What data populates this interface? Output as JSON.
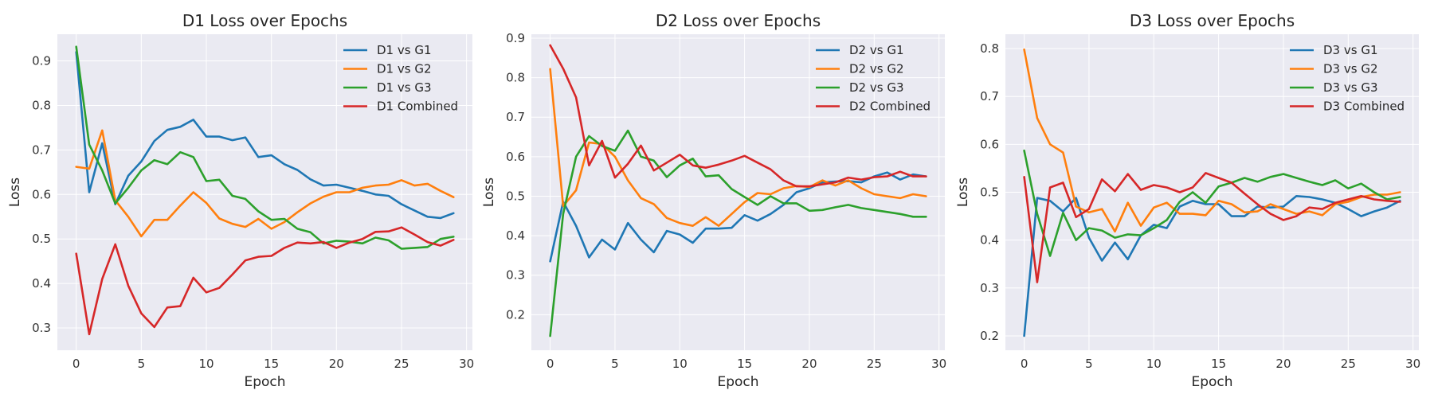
{
  "chart_data": [
    {
      "type": "line",
      "title": "D1 Loss over Epochs",
      "xlabel": "Epoch",
      "ylabel": "Loss",
      "xlim": [
        -1.45,
        30.45
      ],
      "ylim": [
        0.25,
        0.96
      ],
      "xticks": [
        0,
        5,
        10,
        15,
        20,
        25,
        30
      ],
      "yticks": [
        0.3,
        0.4,
        0.5,
        0.6,
        0.7,
        0.8,
        0.9
      ],
      "grid": true,
      "legend": "top-right",
      "x": [
        0,
        1,
        2,
        3,
        4,
        5,
        6,
        7,
        8,
        9,
        10,
        11,
        12,
        13,
        14,
        15,
        16,
        17,
        18,
        19,
        20,
        21,
        22,
        23,
        24,
        25,
        26,
        27,
        28,
        29
      ],
      "series": [
        {
          "name": "D1 vs G1",
          "color": "#1f77b4",
          "values": [
            0.92,
            0.605,
            0.715,
            0.578,
            0.642,
            0.674,
            0.72,
            0.745,
            0.752,
            0.768,
            0.73,
            0.73,
            0.722,
            0.728,
            0.684,
            0.688,
            0.668,
            0.655,
            0.634,
            0.62,
            0.622,
            0.615,
            0.608,
            0.6,
            0.597,
            0.578,
            0.564,
            0.55,
            0.547,
            0.558
          ]
        },
        {
          "name": "D1 vs G2",
          "color": "#ff7f0e",
          "values": [
            0.662,
            0.658,
            0.744,
            0.587,
            0.55,
            0.506,
            0.543,
            0.543,
            0.575,
            0.605,
            0.581,
            0.546,
            0.534,
            0.527,
            0.545,
            0.523,
            0.538,
            0.56,
            0.58,
            0.595,
            0.605,
            0.605,
            0.615,
            0.62,
            0.622,
            0.632,
            0.62,
            0.624,
            0.608,
            0.594
          ]
        },
        {
          "name": "D1 vs G3",
          "color": "#2ca02c",
          "values": [
            0.932,
            0.712,
            0.654,
            0.58,
            0.615,
            0.654,
            0.677,
            0.668,
            0.695,
            0.684,
            0.63,
            0.633,
            0.597,
            0.59,
            0.562,
            0.543,
            0.545,
            0.523,
            0.515,
            0.49,
            0.496,
            0.494,
            0.49,
            0.503,
            0.497,
            0.478,
            0.48,
            0.482,
            0.5,
            0.505
          ]
        },
        {
          "name": "D1 Combined",
          "color": "#d62728",
          "values": [
            0.467,
            0.286,
            0.41,
            0.488,
            0.395,
            0.333,
            0.302,
            0.346,
            0.349,
            0.413,
            0.38,
            0.39,
            0.42,
            0.452,
            0.46,
            0.462,
            0.48,
            0.492,
            0.49,
            0.493,
            0.48,
            0.492,
            0.5,
            0.516,
            0.517,
            0.526,
            0.51,
            0.493,
            0.485,
            0.498
          ]
        }
      ]
    },
    {
      "type": "line",
      "title": "D2 Loss over Epochs",
      "xlabel": "Epoch",
      "ylabel": "Loss",
      "xlim": [
        -1.45,
        30.45
      ],
      "ylim": [
        0.11,
        0.91
      ],
      "xticks": [
        0,
        5,
        10,
        15,
        20,
        25,
        30
      ],
      "yticks": [
        0.2,
        0.3,
        0.4,
        0.5,
        0.6,
        0.7,
        0.8,
        0.9
      ],
      "grid": true,
      "legend": "top-right",
      "x": [
        0,
        1,
        2,
        3,
        4,
        5,
        6,
        7,
        8,
        9,
        10,
        11,
        12,
        13,
        14,
        15,
        16,
        17,
        18,
        19,
        20,
        21,
        22,
        23,
        24,
        25,
        26,
        27,
        28,
        29
      ],
      "series": [
        {
          "name": "D2 vs G1",
          "color": "#1f77b4",
          "values": [
            0.335,
            0.486,
            0.425,
            0.345,
            0.39,
            0.365,
            0.432,
            0.39,
            0.358,
            0.412,
            0.403,
            0.382,
            0.418,
            0.418,
            0.42,
            0.452,
            0.438,
            0.455,
            0.478,
            0.51,
            0.52,
            0.535,
            0.537,
            0.538,
            0.535,
            0.55,
            0.56,
            0.542,
            0.555,
            0.55
          ]
        },
        {
          "name": "D2 vs G2",
          "color": "#ff7f0e",
          "values": [
            0.822,
            0.475,
            0.515,
            0.636,
            0.632,
            0.6,
            0.54,
            0.495,
            0.48,
            0.445,
            0.432,
            0.425,
            0.447,
            0.425,
            0.455,
            0.485,
            0.508,
            0.505,
            0.52,
            0.526,
            0.523,
            0.54,
            0.527,
            0.54,
            0.52,
            0.505,
            0.5,
            0.495,
            0.505,
            0.5
          ]
        },
        {
          "name": "D2 vs G3",
          "color": "#2ca02c",
          "values": [
            0.146,
            0.455,
            0.6,
            0.652,
            0.627,
            0.615,
            0.666,
            0.6,
            0.59,
            0.548,
            0.578,
            0.595,
            0.55,
            0.553,
            0.518,
            0.498,
            0.478,
            0.5,
            0.482,
            0.482,
            0.463,
            0.465,
            0.472,
            0.478,
            0.47,
            0.465,
            0.46,
            0.455,
            0.448,
            0.448
          ]
        },
        {
          "name": "D2 Combined",
          "color": "#d62728",
          "values": [
            0.882,
            0.823,
            0.75,
            0.578,
            0.64,
            0.547,
            0.582,
            0.628,
            0.565,
            0.585,
            0.605,
            0.578,
            0.572,
            0.58,
            0.59,
            0.602,
            0.585,
            0.568,
            0.54,
            0.525,
            0.525,
            0.53,
            0.535,
            0.547,
            0.542,
            0.548,
            0.55,
            0.562,
            0.55,
            0.55
          ]
        }
      ]
    },
    {
      "type": "line",
      "title": "D3 Loss over Epochs",
      "xlabel": "Epoch",
      "ylabel": "Loss",
      "xlim": [
        -1.45,
        30.45
      ],
      "ylim": [
        0.17,
        0.83
      ],
      "xticks": [
        0,
        5,
        10,
        15,
        20,
        25,
        30
      ],
      "yticks": [
        0.2,
        0.3,
        0.4,
        0.5,
        0.6,
        0.7,
        0.8
      ],
      "grid": true,
      "legend": "top-right",
      "x": [
        0,
        1,
        2,
        3,
        4,
        5,
        6,
        7,
        8,
        9,
        10,
        11,
        12,
        13,
        14,
        15,
        16,
        17,
        18,
        19,
        20,
        21,
        22,
        23,
        24,
        25,
        26,
        27,
        28,
        29
      ],
      "series": [
        {
          "name": "D3 vs G1",
          "color": "#1f77b4",
          "values": [
            0.2,
            0.488,
            0.482,
            0.46,
            0.488,
            0.405,
            0.357,
            0.395,
            0.36,
            0.41,
            0.432,
            0.425,
            0.47,
            0.482,
            0.475,
            0.475,
            0.45,
            0.45,
            0.47,
            0.468,
            0.47,
            0.492,
            0.49,
            0.485,
            0.478,
            0.465,
            0.45,
            0.46,
            0.468,
            0.482
          ]
        },
        {
          "name": "D3 vs G2",
          "color": "#ff7f0e",
          "values": [
            0.798,
            0.655,
            0.6,
            0.583,
            0.47,
            0.458,
            0.465,
            0.418,
            0.478,
            0.43,
            0.468,
            0.478,
            0.455,
            0.455,
            0.452,
            0.482,
            0.475,
            0.458,
            0.46,
            0.475,
            0.465,
            0.455,
            0.46,
            0.452,
            0.475,
            0.48,
            0.49,
            0.495,
            0.495,
            0.5
          ]
        },
        {
          "name": "D3 vs G3",
          "color": "#2ca02c",
          "values": [
            0.587,
            0.455,
            0.367,
            0.457,
            0.4,
            0.425,
            0.42,
            0.405,
            0.412,
            0.41,
            0.425,
            0.442,
            0.48,
            0.5,
            0.478,
            0.512,
            0.52,
            0.53,
            0.522,
            0.532,
            0.538,
            0.53,
            0.522,
            0.515,
            0.525,
            0.508,
            0.518,
            0.5,
            0.485,
            0.49
          ]
        },
        {
          "name": "D3 Combined",
          "color": "#d62728",
          "values": [
            0.532,
            0.312,
            0.51,
            0.52,
            0.448,
            0.465,
            0.527,
            0.502,
            0.538,
            0.505,
            0.515,
            0.51,
            0.5,
            0.51,
            0.54,
            0.53,
            0.52,
            0.497,
            0.475,
            0.455,
            0.442,
            0.45,
            0.468,
            0.465,
            0.478,
            0.485,
            0.492,
            0.485,
            0.482,
            0.48
          ]
        }
      ]
    }
  ]
}
